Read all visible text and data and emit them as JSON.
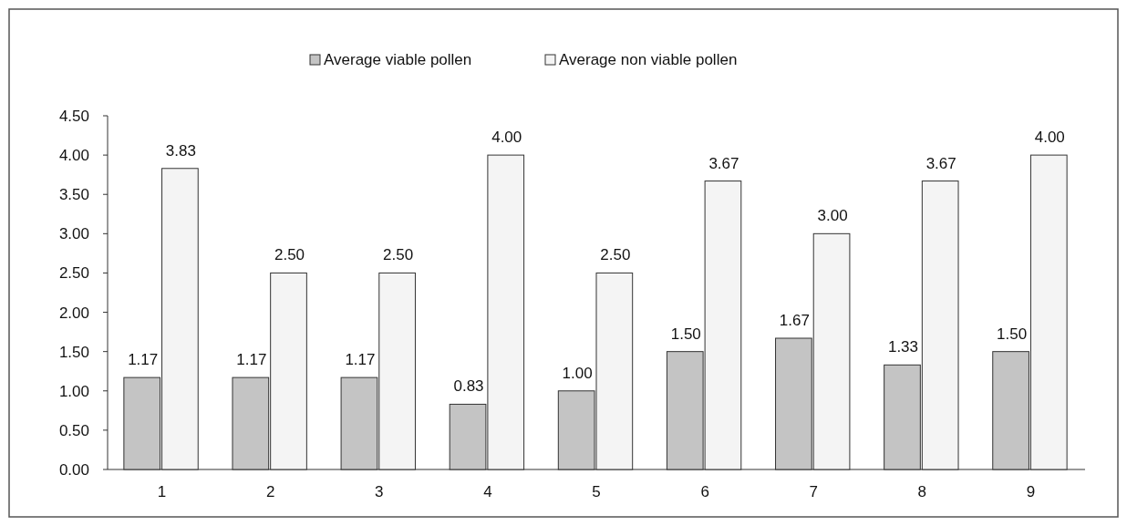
{
  "chart_data": {
    "type": "bar",
    "categories": [
      "1",
      "2",
      "3",
      "4",
      "5",
      "6",
      "7",
      "8",
      "9"
    ],
    "series": [
      {
        "name": "Average viable pollen",
        "color": "#c4c4c4",
        "values": [
          1.17,
          1.17,
          1.17,
          0.83,
          1.0,
          1.5,
          1.67,
          1.33,
          1.5
        ],
        "value_labels": [
          "1.17",
          "1.17",
          "1.17",
          "0.83",
          "1.00",
          "1.50",
          "1.67",
          "1.33",
          "1.50"
        ]
      },
      {
        "name": "Average non viable pollen",
        "color": "#f4f4f4",
        "values": [
          3.83,
          2.5,
          2.5,
          4.0,
          2.5,
          3.67,
          3.0,
          3.67,
          4.0
        ],
        "value_labels": [
          "3.83",
          "2.50",
          "2.50",
          "4.00",
          "2.50",
          "3.67",
          "3.00",
          "3.67",
          "4.00"
        ]
      }
    ],
    "ylim": [
      0,
      4.5
    ],
    "yticks": [
      {
        "value": 0,
        "label": "0.00"
      },
      {
        "value": 0.5,
        "label": "0.50"
      },
      {
        "value": 1,
        "label": "1.00"
      },
      {
        "value": 1.5,
        "label": "1.50"
      },
      {
        "value": 2,
        "label": "2.00"
      },
      {
        "value": 2.5,
        "label": "2.50"
      },
      {
        "value": 3,
        "label": "3.00"
      },
      {
        "value": 3.5,
        "label": "3.50"
      },
      {
        "value": 4,
        "label": "4.00"
      },
      {
        "value": 4.5,
        "label": "4.50"
      }
    ],
    "legend": "top",
    "grid": false
  }
}
